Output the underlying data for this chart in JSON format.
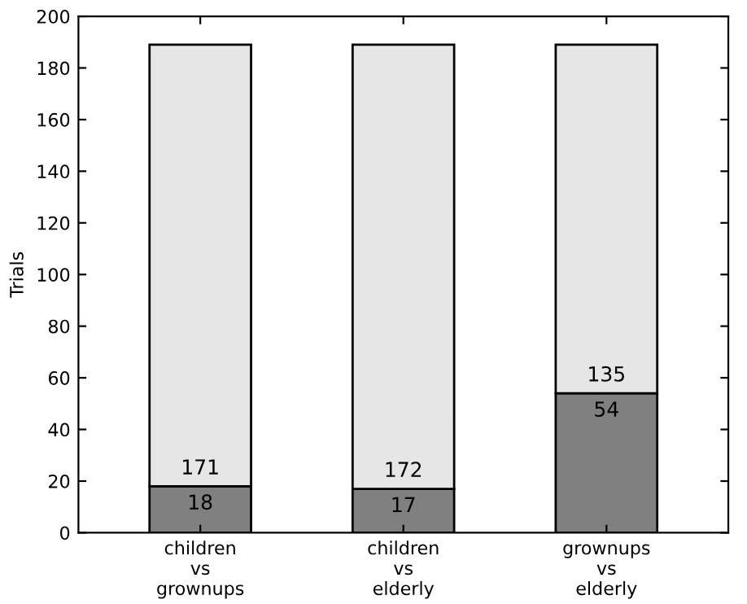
{
  "chart_data": {
    "type": "bar",
    "stacked": true,
    "ylabel": "Trials",
    "categories": [
      "children\nvs\ngrownups",
      "children\nvs\nelderly",
      "grownups\nvs\nelderly"
    ],
    "series": [
      {
        "color": "#808080",
        "values": [
          18,
          17,
          54
        ]
      },
      {
        "color": "#e6e6e6",
        "values": [
          171,
          172,
          135
        ]
      }
    ],
    "data_labels": true,
    "ylim": [
      0,
      200
    ],
    "yticks": [
      0,
      20,
      40,
      60,
      80,
      100,
      120,
      140,
      160,
      180,
      200
    ],
    "grid": false,
    "legend": false
  }
}
